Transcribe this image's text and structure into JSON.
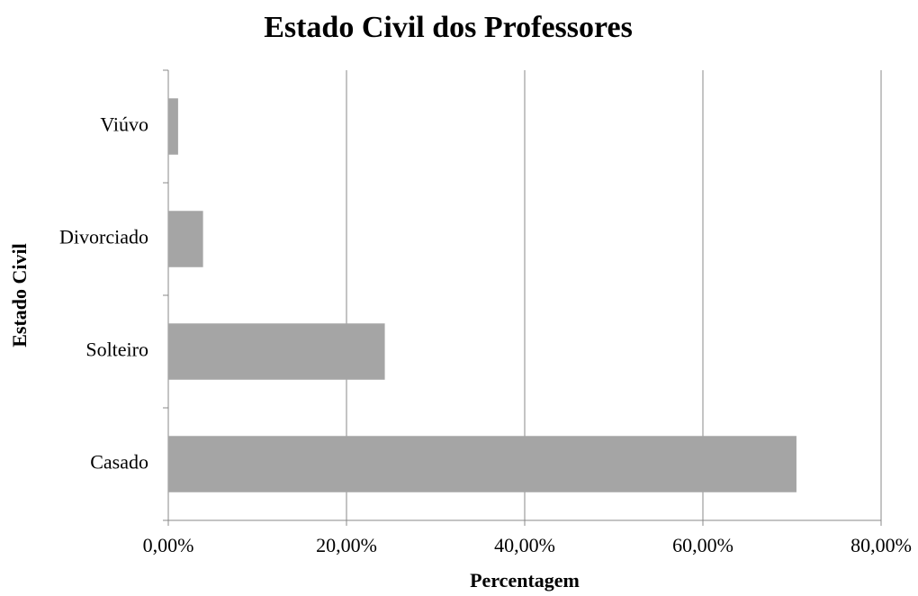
{
  "chart_data": {
    "type": "barh",
    "title": "Estado Civil dos Professores",
    "x_label": "Percentagem",
    "y_label": "Estado Civil",
    "categories": [
      "Casado",
      "Solteiro",
      "Divorciado",
      "Viúvo"
    ],
    "values": [
      70.5,
      24.3,
      3.9,
      1.1
    ],
    "color": "#a5a5a5",
    "xlim": [
      0,
      80
    ],
    "xticks": [
      {
        "value": 0,
        "label": "0,00%"
      },
      {
        "value": 20,
        "label": "20,00%"
      },
      {
        "value": 40,
        "label": "40,00%"
      },
      {
        "value": 60,
        "label": "60,00%"
      },
      {
        "value": 80,
        "label": "80,00%"
      }
    ],
    "grid": true
  }
}
